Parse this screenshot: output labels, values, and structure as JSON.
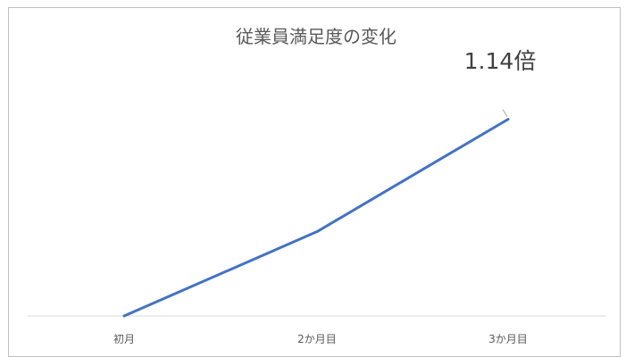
{
  "chart_data": {
    "type": "line",
    "title": "従業員満足度の変化",
    "categories": [
      "初月",
      "2か月目",
      "3か月目"
    ],
    "series": [
      {
        "values": [
          1.0,
          1.06,
          1.14
        ]
      }
    ],
    "ylim": [
      1.0,
      1.155
    ],
    "annotation": "1.14倍",
    "grid": false,
    "colors": {
      "line": "#4472c4",
      "axis": "#d9d9d9",
      "title": "#595959",
      "tick": "#595959",
      "annotation": "#404040"
    }
  }
}
